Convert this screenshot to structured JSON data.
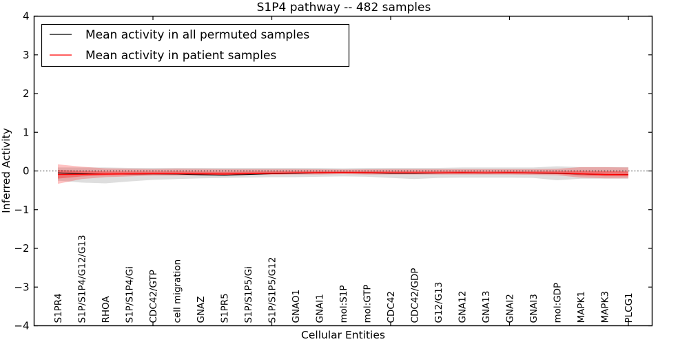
{
  "chart_data": {
    "type": "line",
    "title": "S1P4 pathway -- 482 samples",
    "xlabel": "Cellular Entities",
    "ylabel": "Inferred Activity",
    "ylim": [
      -4,
      4
    ],
    "xlim_slots": 26,
    "yticks": [
      4,
      3,
      2,
      1,
      0,
      -1,
      -2,
      -3,
      -4
    ],
    "xtick_indices": [
      4,
      9,
      14,
      19,
      24
    ],
    "grid": false,
    "zero_line_style": "dotted",
    "legend_position": "upper left",
    "categories": [
      "S1PR4",
      "S1P/S1P4/G12/G13",
      "RHOA",
      "S1P/S1P4/Gi",
      "CDC42/GTP",
      "cell migration",
      "GNAZ",
      "S1PR5",
      "S1P/S1P5/Gi",
      "S1P/S1P5/G12",
      "GNAO1",
      "GNAI1",
      "mol:S1P",
      "mol:GTP",
      "CDC42",
      "CDC42/GDP",
      "G12/G13",
      "GNA12",
      "GNA13",
      "GNAI2",
      "GNAI3",
      "mol:GDP",
      "MAPK1",
      "MAPK3",
      "PLCG1"
    ],
    "series": [
      {
        "name": "Mean activity in all permuted samples",
        "color": "#000000",
        "line_width": 1.1,
        "values": [
          -0.05,
          -0.07,
          -0.08,
          -0.08,
          -0.075,
          -0.08,
          -0.1,
          -0.11,
          -0.09,
          -0.07,
          -0.06,
          -0.05,
          -0.04,
          -0.05,
          -0.06,
          -0.06,
          -0.055,
          -0.05,
          -0.055,
          -0.05,
          -0.055,
          -0.06,
          -0.08,
          -0.09,
          -0.09
        ]
      },
      {
        "name": "Mean activity in patient samples",
        "color": "#ff0000",
        "line_width": 1.4,
        "values": [
          -0.09,
          -0.085,
          -0.08,
          -0.075,
          -0.07,
          -0.07,
          -0.075,
          -0.08,
          -0.07,
          -0.06,
          -0.05,
          -0.045,
          -0.04,
          -0.045,
          -0.05,
          -0.05,
          -0.05,
          -0.045,
          -0.05,
          -0.045,
          -0.05,
          -0.055,
          -0.075,
          -0.09,
          -0.095
        ]
      }
    ],
    "bands": [
      {
        "id": "permuted-range-band",
        "color": "#888888",
        "opacity": 0.28,
        "high": [
          0.09,
          0.09,
          0.09,
          0.08,
          0.08,
          0.08,
          0.08,
          0.08,
          0.08,
          0.08,
          0.08,
          0.08,
          0.07,
          0.08,
          0.08,
          0.08,
          0.08,
          0.09,
          0.09,
          0.09,
          0.09,
          0.12,
          0.1,
          0.1,
          0.1
        ],
        "low": [
          -0.25,
          -0.3,
          -0.32,
          -0.27,
          -0.23,
          -0.21,
          -0.19,
          -0.18,
          -0.17,
          -0.16,
          -0.16,
          -0.15,
          -0.14,
          -0.15,
          -0.18,
          -0.21,
          -0.18,
          -0.17,
          -0.17,
          -0.17,
          -0.18,
          -0.24,
          -0.2,
          -0.2,
          -0.2
        ]
      },
      {
        "id": "patient-range-band",
        "color": "#ff0000",
        "opacity": 0.24,
        "center_series": 1,
        "inner": {
          "fraction": 0.45,
          "opacity": 0.32
        },
        "high": [
          0.17,
          0.11,
          0.07,
          0.06,
          0.05,
          0.06,
          0.055,
          0.05,
          0.05,
          0.05,
          0.05,
          0.045,
          0.04,
          0.045,
          0.05,
          0.05,
          0.05,
          0.05,
          0.05,
          0.05,
          0.05,
          0.055,
          0.1,
          0.1,
          0.09
        ],
        "low": [
          -0.33,
          -0.21,
          -0.16,
          -0.14,
          -0.12,
          -0.12,
          -0.11,
          -0.11,
          -0.1,
          -0.1,
          -0.09,
          -0.09,
          -0.08,
          -0.09,
          -0.09,
          -0.09,
          -0.09,
          -0.09,
          -0.09,
          -0.09,
          -0.1,
          -0.11,
          -0.17,
          -0.19,
          -0.19
        ]
      }
    ]
  },
  "legend": {
    "items": [
      {
        "label": "Mean activity in all permuted samples",
        "color": "#000000"
      },
      {
        "label": "Mean activity in patient samples",
        "color": "#ff0000"
      }
    ]
  }
}
